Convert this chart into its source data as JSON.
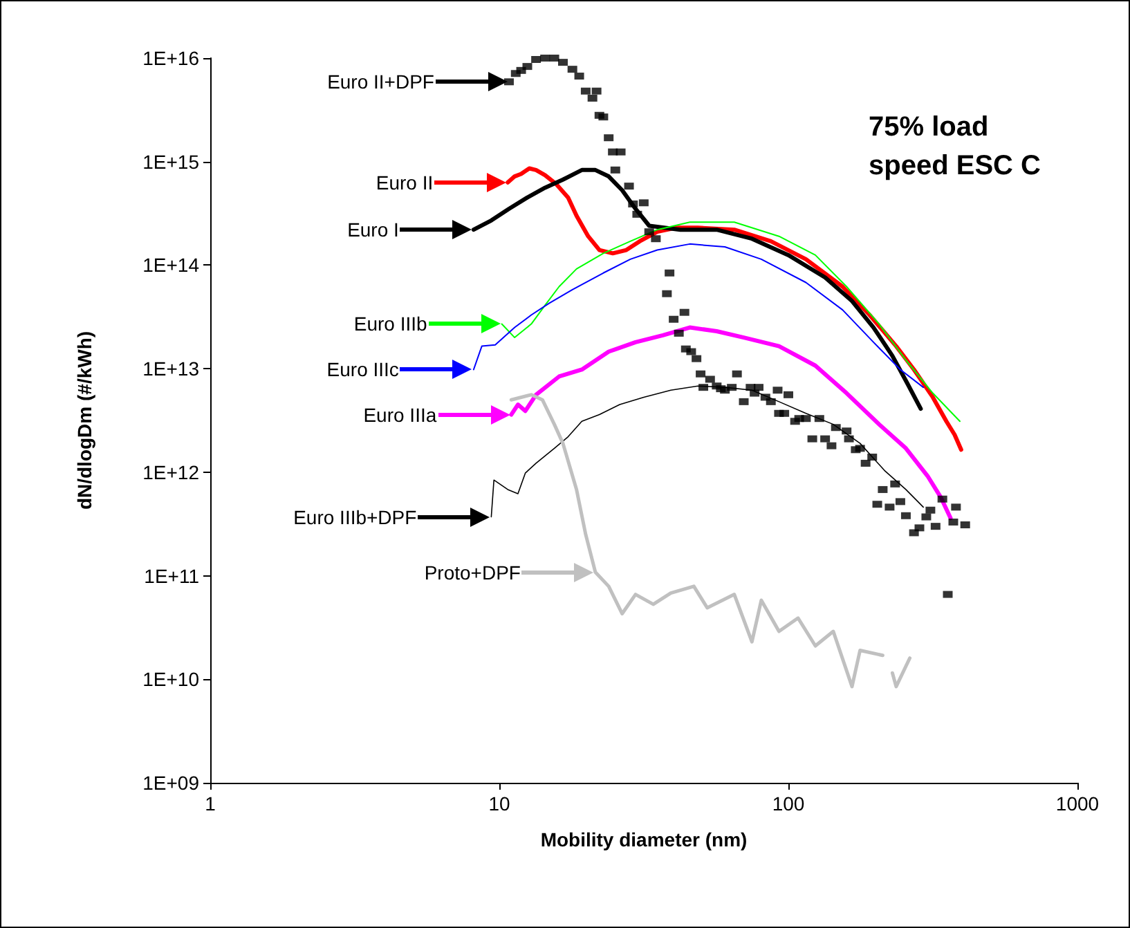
{
  "chart_data": {
    "type": "line",
    "title": "75% load speed ESC C",
    "xlabel": "Mobility diameter (nm)",
    "ylabel": "dN/dlogDm (#/kWh)",
    "log": "xy",
    "xlim": [
      1,
      1000
    ],
    "xticks": [
      1,
      10,
      100,
      1000
    ],
    "ylim": [
      1000000000.0,
      1e+16
    ],
    "yticks": [
      {
        "value": 1000000000.0,
        "label": "1E+09"
      },
      {
        "value": 10000000000.0,
        "label": "1E+10"
      },
      {
        "value": 100000000000.0,
        "label": "1E+11"
      },
      {
        "value": 1000000000000.0,
        "label": "1E+12"
      },
      {
        "value": 10000000000000.0,
        "label": "1E+13"
      },
      {
        "value": 100000000000000.0,
        "label": "1E+14"
      },
      {
        "value": 1000000000000000.0,
        "label": "1E+15"
      },
      {
        "value": 1e+16,
        "label": "1E+16"
      }
    ],
    "marker": "none",
    "line_style": "solid",
    "legend": "left",
    "series": [
      {
        "name": "Euro II+DPF",
        "type": "scatter",
        "marker": "square",
        "color": "#000000",
        "x": [
          10.8,
          11.4,
          11.9,
          12.5,
          13.4,
          14.4,
          15.5,
          16.6,
          17.9,
          18.9,
          19.9,
          21.0,
          21.7,
          22.2,
          22.9,
          23.9,
          24.7,
          26.3,
          25.2,
          28.1,
          29.0,
          31.6,
          30.0,
          33.0,
          34.8,
          38.8,
          38.0,
          40.1,
          43.7,
          41.8,
          44.2,
          46.1,
          48.1,
          49.7,
          53.6,
          50.8,
          56.5,
          58.4,
          60.3,
          63.7,
          66.4,
          70.1,
          74.0,
          76.4,
          78.9,
          83.3,
          87.0,
          91.8,
          92.8,
          100,
          96.8,
          105.5,
          109,
          115,
          121,
          128,
          134,
          141,
          146,
          159,
          162,
          171,
          177,
          185,
          195,
          212,
          234,
          203,
          224,
          244,
          255,
          272,
          284,
          300,
          310,
          323,
          341,
          380,
          372,
          409,
          356
        ],
        "values": [
          5900000000000000.0,
          7100000000000000.0,
          7600000000000000.0,
          8300000000000000.0,
          9700000000000000.0,
          1e+16,
          1e+16,
          9100000000000000.0,
          7800000000000000.0,
          6700000000000000.0,
          4800000000000000.0,
          4100000000000000.0,
          4800000000000000.0,
          2800000000000000.0,
          2700000000000000.0,
          1700000000000000.0,
          1240000000000000.0,
          1240000000000000.0,
          830000000000000.0,
          580000000000000.0,
          390000000000000.0,
          400000000000000.0,
          310000000000000.0,
          210000000000000.0,
          180000000000000.0,
          84000000000000.0,
          53000000000000.0,
          30000000000000.0,
          35000000000000.0,
          22000000000000.0,
          15500000000000.0,
          14600000000000.0,
          12500000000000.0,
          8900000000000.0,
          7900000000000.0,
          6600000000000.0,
          6800000000000.0,
          6400000000000.0,
          6200000000000.0,
          6600000000000.0,
          8900000000000.0,
          4800000000000.0,
          6600000000000.0,
          5800000000000.0,
          6600000000000.0,
          5300000000000.0,
          4800000000000.0,
          6200000000000.0,
          3700000000000.0,
          5600000000000.0,
          3700000000000.0,
          3100000000000.0,
          3300000000000.0,
          3300000000000.0,
          2100000000000.0,
          3300000000000.0,
          2100000000000.0,
          1800000000000.0,
          2700000000000.0,
          2500000000000.0,
          2100000000000.0,
          1650000000000.0,
          1700000000000.0,
          1220000000000.0,
          1400000000000.0,
          680000000000.0,
          770000000000.0,
          490000000000.0,
          460000000000.0,
          520000000000.0,
          380000000000.0,
          260000000000.0,
          290000000000.0,
          370000000000.0,
          430000000000.0,
          300000000000.0,
          550000000000.0,
          460000000000.0,
          330000000000.0,
          310000000000.0,
          66000000000.0
        ]
      },
      {
        "name": "Euro II",
        "color": "#ff0000",
        "x": [
          10.7,
          11.3,
          11.9,
          12.7,
          13.4,
          14.4,
          15.7,
          17.3,
          18.5,
          20.3,
          22.2,
          24.7,
          27.5,
          30.6,
          35.2,
          40.9,
          48.6,
          65.0,
          87.0,
          115,
          154,
          191,
          236,
          272,
          316,
          352,
          376,
          396
        ],
        "values": [
          630000000000000.0,
          720000000000000.0,
          760000000000000.0,
          860000000000000.0,
          830000000000000.0,
          740000000000000.0,
          610000000000000.0,
          450000000000000.0,
          300000000000000.0,
          190000000000000.0,
          140000000000000.0,
          130000000000000.0,
          140000000000000.0,
          170000000000000.0,
          210000000000000.0,
          230000000000000.0,
          230000000000000.0,
          220000000000000.0,
          170000000000000.0,
          114000000000000.0,
          62000000000000.0,
          33000000000000.0,
          16500000000000.0,
          9800000000000.0,
          5300000000000.0,
          3100000000000.0,
          2300000000000.0,
          1650000000000.0
        ]
      },
      {
        "name": "Euro I",
        "color": "#000000",
        "x": [
          8.15,
          9.38,
          10.8,
          12.5,
          14.4,
          16.6,
          19.3,
          21.5,
          23.9,
          26.6,
          29.6,
          33.0,
          42.3,
          56.5,
          74.8,
          100,
          134,
          166,
          197,
          229,
          258,
          287
        ],
        "values": [
          220000000000000.0,
          270000000000000.0,
          350000000000000.0,
          450000000000000.0,
          560000000000000.0,
          670000000000000.0,
          830000000000000.0,
          830000000000000.0,
          720000000000000.0,
          530000000000000.0,
          350000000000000.0,
          240000000000000.0,
          220000000000000.0,
          220000000000000.0,
          180000000000000.0,
          125000000000000.0,
          76000000000000.0,
          45000000000000.0,
          25000000000000.0,
          13300000000000.0,
          7200000000000.0,
          4100000000000.0
        ]
      },
      {
        "name": "Euro IIIb",
        "color": "#00ff00",
        "x": [
          10.2,
          11.3,
          12.9,
          14.4,
          16.1,
          18.5,
          22.9,
          28.4,
          35.2,
          45.6,
          65.0,
          92.8,
          124,
          159,
          206,
          255,
          316,
          392
        ],
        "values": [
          27000000000000.0,
          20000000000000.0,
          27000000000000.0,
          41000000000000.0,
          62000000000000.0,
          92000000000000.0,
          130000000000000.0,
          170000000000000.0,
          220000000000000.0,
          260000000000000.0,
          260000000000000.0,
          190000000000000.0,
          125000000000000.0,
          62000000000000.0,
          27000000000000.0,
          12100000000000.0,
          5800000000000.0,
          3100000000000.0
        ]
      },
      {
        "name": "Euro IIIc",
        "color": "#0000ff",
        "x": [
          8.15,
          8.7,
          9.68,
          11.3,
          12.9,
          14.9,
          17.9,
          22.9,
          28.4,
          35.2,
          45.6,
          60.3,
          80.6,
          115,
          154,
          197,
          244,
          293
        ],
        "values": [
          9800000000000.0,
          16500000000000.0,
          17000000000000.0,
          25000000000000.0,
          33000000000000.0,
          43000000000000.0,
          58000000000000.0,
          84000000000000.0,
          114000000000000.0,
          140000000000000.0,
          160000000000000.0,
          150000000000000.0,
          114000000000000.0,
          68000000000000.0,
          37000000000000.0,
          18000000000000.0,
          9800000000000.0,
          6600000000000.0
        ]
      },
      {
        "name": "Euro IIIa",
        "color": "#ff00ff",
        "x": [
          11.0,
          11.6,
          12.3,
          13.4,
          16.1,
          19.3,
          23.9,
          29.6,
          36.8,
          45.6,
          56.5,
          70.1,
          92.8,
          124,
          159,
          206,
          255,
          303,
          337,
          364
        ],
        "values": [
          3600000000000.0,
          4500000000000.0,
          3900000000000.0,
          5600000000000.0,
          8400000000000.0,
          9800000000000.0,
          14600000000000.0,
          18000000000000.0,
          21000000000000.0,
          25000000000000.0,
          23000000000000.0,
          20000000000000.0,
          16500000000000.0,
          10700000000000.0,
          5800000000000.0,
          2900000000000.0,
          1700000000000.0,
          920000000000.0,
          570000000000.0,
          360000000000.0
        ]
      },
      {
        "name": "Euro IIIb+DPF",
        "color": "#000000",
        "x": [
          9.38,
          9.58,
          10.7,
          11.6,
          12.3,
          13.4,
          15.5,
          17.3,
          19.3,
          22.2,
          26.1,
          31.6,
          39.2,
          48.6,
          60.3,
          74.8,
          92.8,
          115,
          143,
          177,
          215,
          255,
          293
        ],
        "values": [
          370000000000.0,
          840000000000.0,
          680000000000.0,
          620000000000.0,
          980000000000.0,
          1220000000000.0,
          1700000000000.0,
          2200000000000.0,
          3100000000000.0,
          3600000000000.0,
          4500000000000.0,
          5300000000000.0,
          6200000000000.0,
          6800000000000.0,
          6600000000000.0,
          6200000000000.0,
          4800000000000.0,
          3700000000000.0,
          2900000000000.0,
          1900000000000.0,
          1040000000000.0,
          680000000000.0,
          460000000000.0
        ]
      },
      {
        "name": "Proto+DPF",
        "color": "#c0c0c0",
        "x": [
          11.0,
          12.9,
          14.1,
          15.5,
          16.6,
          18.5,
          19.9,
          21.5,
          23.9,
          26.6,
          29.6,
          34.1,
          39.2,
          47.1,
          52.4,
          65.0,
          74.8,
          80.6,
          92.8,
          108,
          124,
          143,
          166,
          177,
          212,
          215,
          229,
          236,
          263
        ],
        "values": [
          5000000000000.0,
          5600000000000.0,
          5000000000000.0,
          2900000000000.0,
          1900000000000.0,
          680000000000.0,
          250000000000.0,
          108000000000.0,
          79000000000.0,
          43000000000.0,
          66000000000.0,
          53000000000.0,
          68000000000.0,
          79000000000.0,
          49000000000.0,
          66000000000.0,
          23000000000.0,
          58000000000.0,
          29000000000.0,
          39000000000.0,
          21000000000.0,
          29000000000.0,
          8500000000.0,
          19000000000.0,
          17000000000.0,
          null,
          11500000000.0,
          8500000000.0,
          16000000000.0
        ]
      }
    ]
  }
}
